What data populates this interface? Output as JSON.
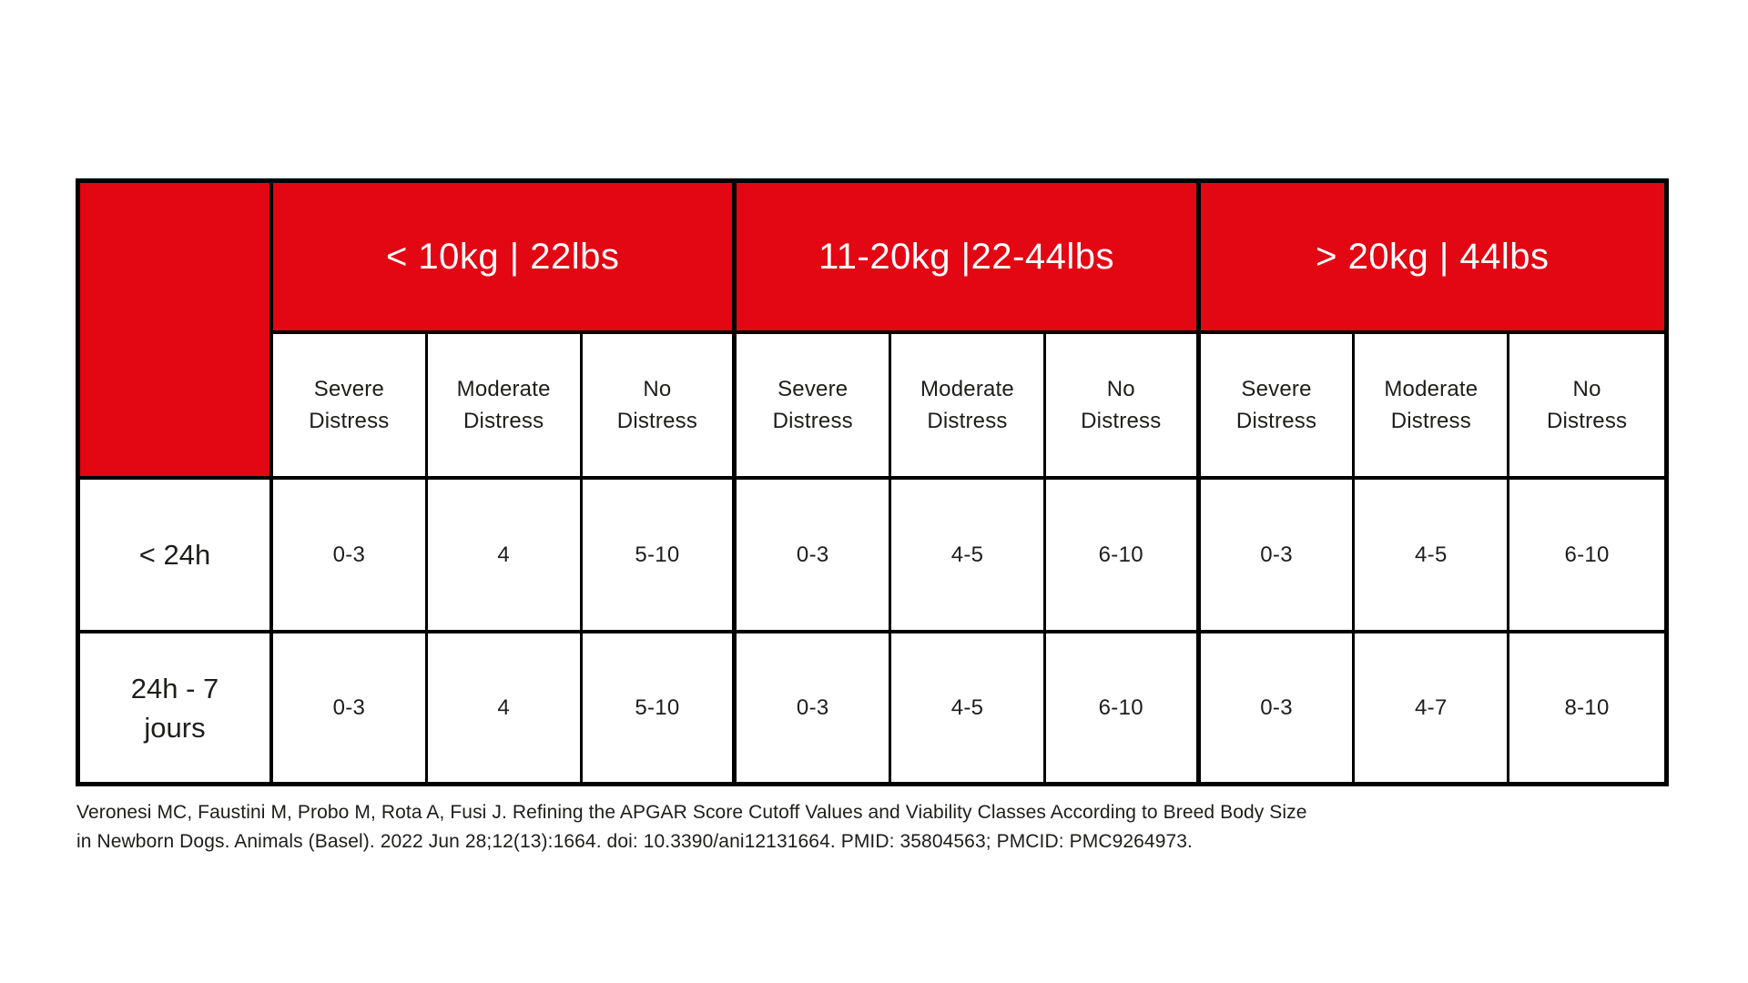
{
  "colors": {
    "accent_red": "#e30613",
    "border_black": "#000000",
    "text_black": "#1d1d1b",
    "header_text_white": "#ffffff"
  },
  "table": {
    "corner_label": "",
    "weight_groups": [
      {
        "label": "< 10kg | 22lbs"
      },
      {
        "label": "11-20kg |22-44lbs"
      },
      {
        "label": "> 20kg | 44lbs"
      }
    ],
    "subheaders": [
      "Severe\nDistress",
      "Moderate\nDistress",
      "No\nDistress",
      "Severe\nDistress",
      "Moderate\nDistress",
      "No\nDistress",
      "Severe\nDistress",
      "Moderate\nDistress",
      "No\nDistress"
    ],
    "rows": [
      {
        "label": "< 24h",
        "values": [
          "0-3",
          "4",
          "5-10",
          "0-3",
          "4-5",
          "6-10",
          "0-3",
          "4-5",
          "6-10"
        ]
      },
      {
        "label": "24h - 7\njours",
        "values": [
          "0-3",
          "4",
          "5-10",
          "0-3",
          "4-5",
          "6-10",
          "0-3",
          "4-7",
          "8-10"
        ]
      }
    ]
  },
  "citation": {
    "line1": "Veronesi MC, Faustini M, Probo M, Rota A, Fusi J. Refining the APGAR Score Cutoff Values and Viability Classes According to Breed Body Size",
    "line2": "in Newborn Dogs. Animals (Basel). 2022 Jun 28;12(13):1664. doi: 10.3390/ani12131664. PMID: 35804563; PMCID: PMC9264973."
  }
}
